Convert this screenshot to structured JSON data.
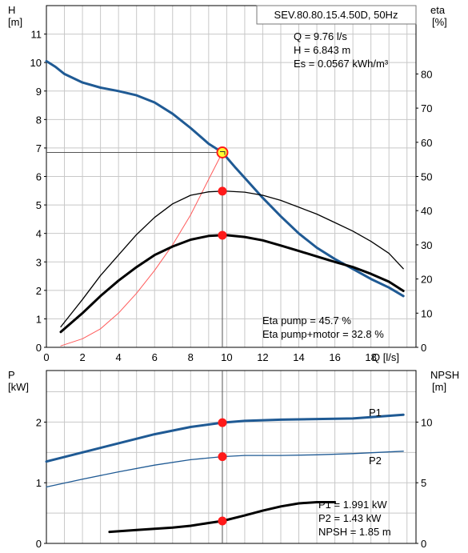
{
  "chart_data": [
    {
      "type": "line",
      "title": "SEV.80.80.15.4.50D, 50Hz",
      "left_axis": {
        "title_lines": [
          "H",
          "[m]"
        ],
        "range": [
          0,
          12
        ],
        "ticks": [
          0,
          1,
          2,
          3,
          4,
          5,
          6,
          7,
          8,
          9,
          10,
          11
        ]
      },
      "right_axis": {
        "title_lines": [
          "eta",
          "[%]"
        ],
        "range": [
          0,
          100
        ],
        "ticks": [
          0,
          10,
          20,
          30,
          40,
          50,
          60,
          70,
          80
        ]
      },
      "x_axis": {
        "range": [
          0,
          20.5
        ],
        "ticks": [
          "0",
          "2",
          "4",
          "6",
          "8",
          "10",
          "12",
          "14",
          "16",
          "18"
        ],
        "end_label": "Q [l/s]"
      },
      "grid": true,
      "duty_point": {
        "Q": 9.76,
        "H": 6.843
      },
      "info_lines": [
        "Q = 9.76 l/s",
        "H = 6.843 m",
        "Es = 0.0567 kWh/m³"
      ],
      "eta_lines": [
        "Eta pump = 45.7 %",
        "Eta pump+motor = 32.8 %"
      ],
      "series": [
        {
          "key": "head",
          "axis": "left",
          "color": "#1f5a94",
          "width": 3,
          "points": [
            [
              0,
              10.05
            ],
            [
              0.5,
              9.85
            ],
            [
              1,
              9.6
            ],
            [
              2,
              9.3
            ],
            [
              3,
              9.12
            ],
            [
              4,
              9.0
            ],
            [
              5,
              8.85
            ],
            [
              6,
              8.6
            ],
            [
              7,
              8.2
            ],
            [
              8,
              7.7
            ],
            [
              9,
              7.15
            ],
            [
              9.76,
              6.843
            ],
            [
              10.5,
              6.3
            ],
            [
              11,
              5.95
            ],
            [
              12,
              5.25
            ],
            [
              13,
              4.6
            ],
            [
              14,
              4.0
            ],
            [
              15,
              3.5
            ],
            [
              16,
              3.1
            ],
            [
              17,
              2.75
            ],
            [
              18,
              2.4
            ],
            [
              19,
              2.1
            ],
            [
              19.8,
              1.8
            ]
          ]
        },
        {
          "key": "system",
          "axis": "left",
          "color": "#ff5a5a",
          "width": 1,
          "points": [
            [
              0.8,
              0.05
            ],
            [
              2,
              0.3
            ],
            [
              3,
              0.65
            ],
            [
              4,
              1.2
            ],
            [
              5,
              1.9
            ],
            [
              6,
              2.7
            ],
            [
              7,
              3.6
            ],
            [
              8,
              4.65
            ],
            [
              9,
              5.9
            ],
            [
              9.76,
              6.843
            ]
          ]
        },
        {
          "key": "eta_pump",
          "axis": "right",
          "color": "#000000",
          "width": 1.3,
          "points": [
            [
              0.8,
              6
            ],
            [
              2,
              14
            ],
            [
              3,
              21
            ],
            [
              4,
              27
            ],
            [
              5,
              33
            ],
            [
              6,
              38
            ],
            [
              7,
              42
            ],
            [
              8,
              44.5
            ],
            [
              9,
              45.5
            ],
            [
              9.76,
              45.7
            ],
            [
              10,
              45.7
            ],
            [
              11,
              45.4
            ],
            [
              12,
              44.5
            ],
            [
              13,
              43
            ],
            [
              14,
              41
            ],
            [
              15,
              39
            ],
            [
              16,
              36.5
            ],
            [
              17,
              34
            ],
            [
              18,
              31
            ],
            [
              19,
              27.5
            ],
            [
              19.8,
              23
            ]
          ]
        },
        {
          "key": "eta_total",
          "axis": "right",
          "color": "#000000",
          "width": 3,
          "points": [
            [
              0.8,
              4.5
            ],
            [
              2,
              10
            ],
            [
              3,
              15
            ],
            [
              4,
              19.5
            ],
            [
              5,
              23.5
            ],
            [
              6,
              27
            ],
            [
              7,
              29.5
            ],
            [
              8,
              31.5
            ],
            [
              9,
              32.6
            ],
            [
              9.76,
              32.8
            ],
            [
              10,
              32.8
            ],
            [
              11,
              32.3
            ],
            [
              12,
              31.3
            ],
            [
              13,
              29.8
            ],
            [
              14,
              28.2
            ],
            [
              15,
              26.6
            ],
            [
              16,
              25
            ],
            [
              17,
              23.5
            ],
            [
              18,
              21.5
            ],
            [
              19,
              19.2
            ],
            [
              19.8,
              16.5
            ]
          ]
        }
      ]
    },
    {
      "type": "line",
      "left_axis": {
        "title_lines": [
          "P",
          "[kW]"
        ],
        "range": [
          0,
          2.85
        ],
        "ticks": [
          0,
          1,
          2
        ]
      },
      "right_axis": {
        "title_lines": [
          "NPSH",
          "[m]"
        ],
        "range": [
          0,
          14.25
        ],
        "ticks": [
          0,
          5,
          10
        ]
      },
      "x_axis": {
        "range": [
          0,
          20.5
        ]
      },
      "grid": true,
      "info_lines": [
        "P1 = 1.991 kW",
        "P2 = 1.43 kW",
        "NPSH = 1.85 m"
      ],
      "series": [
        {
          "key": "P1",
          "name": "P1",
          "axis": "left",
          "color": "#1f5a94",
          "width": 3,
          "points": [
            [
              0,
              1.35
            ],
            [
              2,
              1.5
            ],
            [
              4,
              1.65
            ],
            [
              6,
              1.8
            ],
            [
              8,
              1.92
            ],
            [
              9.76,
              1.991
            ],
            [
              11,
              2.02
            ],
            [
              13,
              2.04
            ],
            [
              15,
              2.05
            ],
            [
              17,
              2.06
            ],
            [
              19.8,
              2.12
            ]
          ]
        },
        {
          "key": "P2",
          "name": "P2",
          "axis": "left",
          "color": "#1f5a94",
          "width": 1.3,
          "points": [
            [
              0,
              0.93
            ],
            [
              2,
              1.06
            ],
            [
              4,
              1.18
            ],
            [
              6,
              1.29
            ],
            [
              8,
              1.38
            ],
            [
              9.76,
              1.43
            ],
            [
              11,
              1.45
            ],
            [
              13,
              1.45
            ],
            [
              15,
              1.46
            ],
            [
              17,
              1.48
            ],
            [
              19.8,
              1.52
            ]
          ]
        },
        {
          "key": "NPSH",
          "axis": "right",
          "color": "#000000",
          "width": 3,
          "points": [
            [
              3.5,
              0.95
            ],
            [
              5,
              1.1
            ],
            [
              6,
              1.2
            ],
            [
              7,
              1.3
            ],
            [
              8,
              1.45
            ],
            [
              9,
              1.68
            ],
            [
              9.76,
              1.85
            ],
            [
              11,
              2.3
            ],
            [
              12,
              2.7
            ],
            [
              13,
              3.05
            ],
            [
              14,
              3.3
            ],
            [
              15,
              3.4
            ],
            [
              16,
              3.4
            ]
          ]
        }
      ],
      "duty_markers": [
        {
          "axis": "left",
          "x": 9.76,
          "y": 1.991
        },
        {
          "axis": "left",
          "x": 9.76,
          "y": 1.43
        },
        {
          "axis": "right",
          "x": 9.76,
          "y": 1.85
        }
      ]
    }
  ]
}
